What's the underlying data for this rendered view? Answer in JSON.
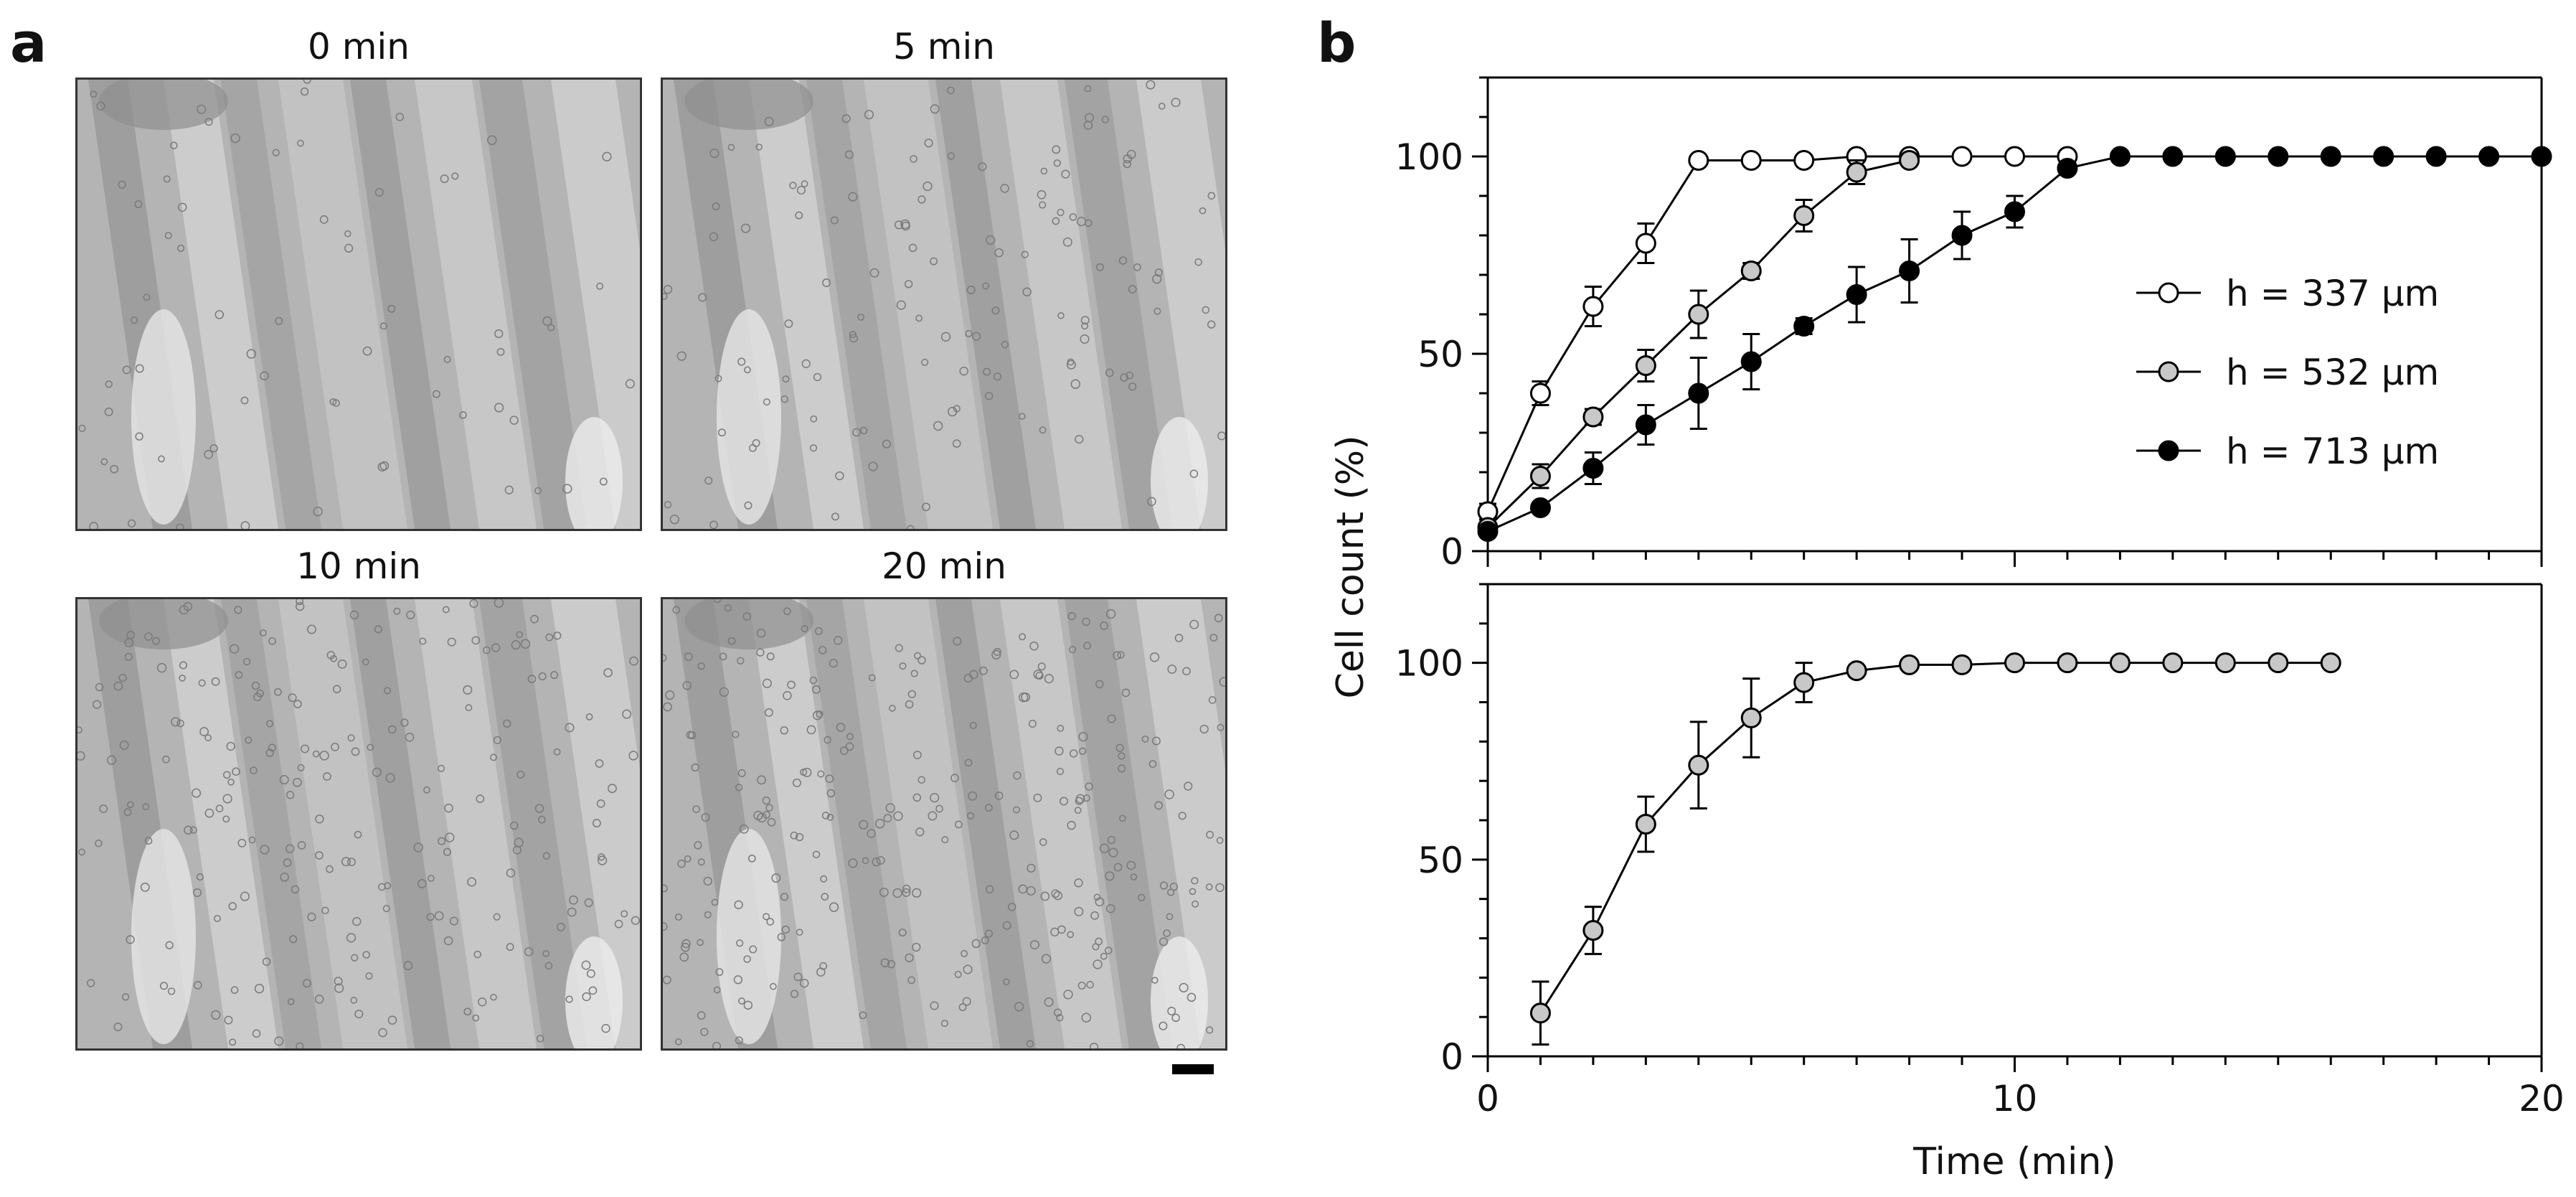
{
  "panel_a": {
    "label": "a",
    "images": [
      {
        "title": "0 min",
        "cells": 70
      },
      {
        "title": "5 min",
        "cells": 140
      },
      {
        "title": "10 min",
        "cells": 230
      },
      {
        "title": "20 min",
        "cells": 300
      }
    ]
  },
  "panel_b": {
    "label": "b"
  },
  "chart_data": [
    {
      "type": "line",
      "xlim": [
        0,
        20
      ],
      "ylim": [
        0,
        120
      ],
      "yticks": [
        0,
        50,
        100
      ],
      "xticks": [
        0,
        10,
        20
      ],
      "ylabel": "Cell count (%)",
      "xlabel": "",
      "legend": "right",
      "series": [
        {
          "name": "h = 337 μm",
          "fill": "#ffffff",
          "x": [
            0,
            1,
            2,
            3,
            4,
            5,
            6,
            7,
            8,
            9,
            10,
            11
          ],
          "y": [
            10,
            40,
            62,
            78,
            99,
            99,
            99,
            100,
            100,
            100,
            100,
            100
          ],
          "err": [
            2,
            3,
            5,
            5,
            0,
            0,
            0,
            0,
            0,
            0,
            0,
            0
          ]
        },
        {
          "name": "h = 532 μm",
          "fill": "#c8c8c8",
          "x": [
            0,
            1,
            2,
            3,
            4,
            5,
            6,
            7,
            8
          ],
          "y": [
            6,
            19,
            34,
            47,
            60,
            71,
            85,
            96,
            99
          ],
          "err": [
            2,
            3,
            2,
            4,
            6,
            2,
            4,
            3,
            0
          ]
        },
        {
          "name": "h = 713 μm",
          "fill": "#000000",
          "x": [
            0,
            1,
            2,
            3,
            4,
            5,
            6,
            7,
            8,
            9,
            10,
            11,
            12,
            13,
            14,
            15,
            16,
            17,
            18,
            19,
            20
          ],
          "y": [
            5,
            11,
            21,
            32,
            40,
            48,
            57,
            65,
            71,
            80,
            86,
            97,
            100,
            100,
            100,
            100,
            100,
            100,
            100,
            100,
            100
          ],
          "err": [
            1,
            1,
            4,
            5,
            9,
            7,
            2,
            7,
            8,
            6,
            4,
            0,
            0,
            0,
            0,
            0,
            0,
            0,
            0,
            0,
            0
          ]
        }
      ]
    },
    {
      "type": "line",
      "xlim": [
        0,
        20
      ],
      "ylim": [
        0,
        120
      ],
      "yticks": [
        0,
        50,
        100
      ],
      "xticks": [
        0,
        10,
        20
      ],
      "xlabel": "Time (min)",
      "ylabel": "",
      "series": [
        {
          "fill": "#c8c8c8",
          "x": [
            1,
            2,
            3,
            4,
            5,
            6,
            7,
            8,
            9,
            10,
            11,
            12,
            13,
            14,
            15,
            16
          ],
          "y": [
            11,
            32,
            59,
            74,
            86,
            95,
            98,
            99.5,
            99.5,
            100,
            100,
            100,
            100,
            100,
            100,
            100
          ],
          "err": [
            8,
            6,
            7,
            11,
            10,
            5,
            0,
            0,
            0,
            0,
            0,
            0,
            0,
            0,
            0,
            0
          ]
        }
      ]
    }
  ]
}
